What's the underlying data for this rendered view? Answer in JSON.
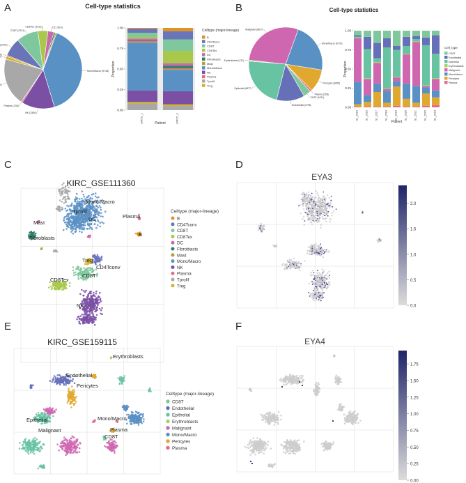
{
  "panels": {
    "A": {
      "letter": "A",
      "title": "Cell-type statistics"
    },
    "B": {
      "letter": "B",
      "title": "Cell-type statistics"
    },
    "C": {
      "letter": "C"
    },
    "D": {
      "letter": "D"
    },
    "E": {
      "letter": "E"
    },
    "F": {
      "letter": "F"
    }
  },
  "colors": {
    "B": "#e0921f",
    "CD4Tconv": "#6a74b8",
    "CD8T": "#7fc89d",
    "CD8Tex": "#a7c84a",
    "DC": "#c86aa8",
    "Fibroblasts": "#2e7d6b",
    "Mast": "#b5a03a",
    "Mono/Macro": "#5a91c4",
    "NK": "#7a4fa4",
    "Plasma": "#e36a8a",
    "Tprolif": "#a8a8a8",
    "Treg": "#d2b22a",
    "Endothelial": "#6570b8",
    "Epithelial": "#68c3a3",
    "Erythroblasts": "#a7d06a",
    "Malignant": "#cf67b0",
    "Pericytes": "#e0a82e",
    "dim_gray": "#cccccc"
  },
  "chart_data": [
    {
      "id": "A_pie",
      "type": "pie",
      "labels": [
        "Mono/Macro (9748)",
        "NK (3360)",
        "Plasma (135)",
        "Tprolif (4863)",
        "Treg (270)",
        "B (130)",
        "CD4Tconv (1873)",
        "CD8T (2241)",
        "CD8Tex (1012)",
        "DC (610)",
        "Fibroblasts",
        "Mast"
      ],
      "categories": [
        "Mono/Macro",
        "NK",
        "Plasma",
        "Tprolif",
        "Treg",
        "B",
        "CD4Tconv",
        "CD8T",
        "CD8Tex",
        "DC",
        "Fibroblasts",
        "Mast"
      ],
      "values": [
        9748,
        3360,
        135,
        4863,
        270,
        130,
        1873,
        2241,
        1012,
        610,
        160,
        120
      ]
    },
    {
      "id": "A_bar",
      "type": "bar",
      "stacked": true,
      "categories": [
        "ccRCC_1",
        "ccRCC_2"
      ],
      "xlabel": "Patient",
      "ylabel": "Proportion",
      "ylim": [
        0,
        1
      ],
      "yticks": [
        "0.00",
        "0.25",
        "0.50",
        "0.75",
        "1.00"
      ],
      "legend_title": "Celltype (major-lineage)",
      "series": [
        {
          "name": "Tprolif",
          "values": [
            0.08,
            0.05
          ]
        },
        {
          "name": "Treg",
          "values": [
            0.02,
            0.02
          ]
        },
        {
          "name": "NK",
          "values": [
            0.14,
            0.16
          ]
        },
        {
          "name": "Mono/Macro",
          "values": [
            0.58,
            0.26
          ]
        },
        {
          "name": "Mast",
          "values": [
            0.01,
            0.01
          ]
        },
        {
          "name": "Plasma",
          "values": [
            0.01,
            0.01
          ]
        },
        {
          "name": "Fibroblasts",
          "values": [
            0.01,
            0.03
          ]
        },
        {
          "name": "DC",
          "values": [
            0.02,
            0.03
          ]
        },
        {
          "name": "CD8Tex",
          "values": [
            0.02,
            0.15
          ]
        },
        {
          "name": "CD8T",
          "values": [
            0.05,
            0.14
          ]
        },
        {
          "name": "CD4Tconv",
          "values": [
            0.05,
            0.1
          ]
        },
        {
          "name": "B",
          "values": [
            0.01,
            0.04
          ]
        }
      ]
    },
    {
      "id": "B_pie",
      "type": "pie",
      "labels": [
        "Mono/Macro (6778)",
        "Pericytes (3055)",
        "Plasma (258)",
        "CD8T (1021)",
        "Endothelial (3798)",
        "Epithelial (6877)",
        "Erythroblasts (137)",
        "Malignant (8877)"
      ],
      "categories": [
        "Mono/Macro",
        "Pericytes",
        "Plasma",
        "CD8T",
        "Endothelial",
        "Epithelial",
        "Erythroblasts",
        "Malignant"
      ],
      "values": [
        6778,
        3055,
        258,
        1021,
        3798,
        6877,
        137,
        8877
      ]
    },
    {
      "id": "B_bar",
      "type": "bar",
      "stacked": true,
      "categories": [
        "S1_2015",
        "S1_2016",
        "S1_2017",
        "S1_2018",
        "S1_2019",
        "S1_2020",
        "S1_2021",
        "S1_2022",
        "S1_2023"
      ],
      "xlabel": "Patient",
      "ylabel": "Proportion",
      "legend_title": "Cell_type",
      "legend": [
        "CD8T",
        "Endothelial",
        "Epithelial",
        "Erythroblasts",
        "Malignant",
        "Mono/Macro",
        "Pericytes",
        "Plasma"
      ],
      "series": [
        {
          "name": "Plasma",
          "values": [
            0.01,
            0.01,
            0.01,
            0.01,
            0.02,
            0.01,
            0.01,
            0.02,
            0.03
          ]
        },
        {
          "name": "Pericytes",
          "values": [
            0.03,
            0.06,
            0.19,
            0.05,
            0.25,
            0.1,
            0.05,
            0.16,
            0.1
          ]
        },
        {
          "name": "Mono/Macro",
          "values": [
            0.29,
            0.09,
            0.11,
            0.15,
            0.07,
            0.2,
            0.22,
            0.08,
            0.09
          ]
        },
        {
          "name": "Malignant",
          "values": [
            0.57,
            0.21,
            0.27,
            0.03,
            0.05,
            0.38,
            0.57,
            0.02,
            0.15
          ]
        },
        {
          "name": "Erythroblasts",
          "values": [
            0.01,
            0.01,
            0.01,
            0.01,
            0.01,
            0.01,
            0.01,
            0.01,
            0.01
          ]
        },
        {
          "name": "Epithelial",
          "values": [
            0.01,
            0.38,
            0.05,
            0.53,
            0.35,
            0.1,
            0.03,
            0.52,
            0.32
          ]
        },
        {
          "name": "Endothelial",
          "values": [
            0.02,
            0.16,
            0.2,
            0.12,
            0.05,
            0.12,
            0.04,
            0.1,
            0.24
          ]
        },
        {
          "name": "CD8T",
          "values": [
            0.06,
            0.08,
            0.16,
            0.1,
            0.2,
            0.08,
            0.07,
            0.09,
            0.06
          ]
        }
      ]
    },
    {
      "id": "C_umap",
      "type": "scatter",
      "title": "KIRC_GSE111360",
      "legend_title": "Celltype (major-lineage)",
      "legend": [
        "B",
        "CD4Tconv",
        "CD8T",
        "CD8Tex",
        "DC",
        "Fibroblasts",
        "Mast",
        "Mono/Macro",
        "NK",
        "Plasma",
        "Tprolif",
        "Treg"
      ],
      "cluster_labels": [
        "Mono/Macro",
        "Tprolif",
        "Plasma",
        "DC",
        "B",
        "Mast",
        "Fibroblasts",
        "Treg",
        "CD4Tconv",
        "CD8T",
        "CD8Tex",
        "NK"
      ]
    },
    {
      "id": "D_feature",
      "type": "scatter",
      "title": "EYA3",
      "colorbar_ticks": [
        "0.0",
        "0.5",
        "1.0",
        "1.5",
        "2.0"
      ]
    },
    {
      "id": "E_umap",
      "type": "scatter",
      "title": "KIRC_GSE159115",
      "legend_title": "Celltype (major-lineage)",
      "legend": [
        "CD8T",
        "Endothelial",
        "Epithelial",
        "Erythroblasts",
        "Malignant",
        "Mono/Macro",
        "Pericytes",
        "Plasma"
      ],
      "cluster_labels": [
        "Erythroblasts",
        "Endothelial",
        "Pericytes",
        "Epithelial",
        "Malignant",
        "Mono/Macro",
        "Plasma",
        "CD8T"
      ]
    },
    {
      "id": "F_feature",
      "type": "scatter",
      "title": "EYA4",
      "colorbar_ticks": [
        "0.00",
        "0.25",
        "0.50",
        "0.75",
        "1.00",
        "1.25",
        "1.50",
        "1.75"
      ]
    }
  ]
}
